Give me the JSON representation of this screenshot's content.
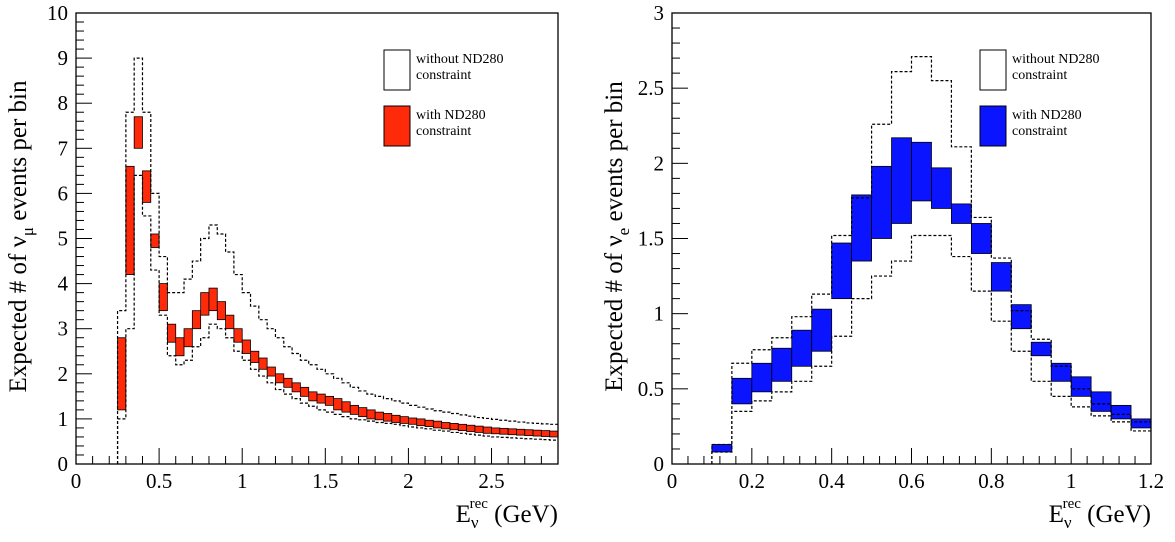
{
  "chart_data": [
    {
      "type": "histogram-band",
      "ylabel": "Expected # of νμ events per bin",
      "ylabel_main": "Expected # of ",
      "ylabel_nu": "ν",
      "ylabel_sub": "μ",
      "ylabel_rest": " events per bin",
      "xlabel": "Eνrec (GeV)",
      "xlabel_E": "E",
      "xlabel_sub": "ν",
      "xlabel_sup": "rec",
      "xlabel_unit": " (GeV)",
      "xlim": [
        0,
        2.9
      ],
      "ylim": [
        0,
        10
      ],
      "xticks": [
        0,
        0.5,
        1,
        1.5,
        2,
        2.5
      ],
      "xtick_labels": [
        "0",
        "0.5",
        "1",
        "1.5",
        "2",
        "2.5"
      ],
      "yticks": [
        0,
        1,
        2,
        3,
        4,
        5,
        6,
        7,
        8,
        9,
        10
      ],
      "ytick_labels": [
        "0",
        "1",
        "2",
        "3",
        "4",
        "5",
        "6",
        "7",
        "8",
        "9",
        "10"
      ],
      "bin_edges": [
        0.25,
        0.3,
        0.35,
        0.4,
        0.45,
        0.5,
        0.55,
        0.6,
        0.65,
        0.7,
        0.75,
        0.8,
        0.85,
        0.9,
        0.95,
        1.0,
        1.05,
        1.1,
        1.15,
        1.2,
        1.25,
        1.3,
        1.35,
        1.4,
        1.45,
        1.5,
        1.55,
        1.6,
        1.65,
        1.7,
        1.75,
        1.8,
        1.85,
        1.9,
        1.95,
        2.0,
        2.05,
        2.1,
        2.15,
        2.2,
        2.25,
        2.3,
        2.35,
        2.4,
        2.45,
        2.5,
        2.55,
        2.6,
        2.65,
        2.7,
        2.75,
        2.8,
        2.85,
        2.9
      ],
      "band_fill": "#ff2a0a",
      "series": [
        {
          "name": "without ND280 constraint",
          "style": "dashed-outline",
          "low": [
            1.0,
            3.0,
            6.4,
            5.5,
            4.3,
            3.3,
            2.4,
            2.2,
            2.3,
            2.6,
            2.8,
            3.1,
            3.0,
            2.8,
            2.5,
            2.3,
            2.1,
            1.95,
            1.8,
            1.65,
            1.55,
            1.45,
            1.35,
            1.28,
            1.2,
            1.15,
            1.1,
            1.05,
            1.0,
            0.98,
            0.95,
            0.92,
            0.9,
            0.88,
            0.85,
            0.82,
            0.8,
            0.78,
            0.75,
            0.73,
            0.7,
            0.68,
            0.66,
            0.64,
            0.62,
            0.6,
            0.59,
            0.58,
            0.57,
            0.56,
            0.55,
            0.54,
            0.53
          ],
          "high": [
            3.4,
            7.8,
            9.0,
            7.8,
            6.0,
            4.6,
            3.8,
            3.8,
            4.1,
            4.5,
            5.0,
            5.3,
            5.1,
            4.7,
            4.2,
            3.8,
            3.5,
            3.2,
            3.0,
            2.8,
            2.6,
            2.45,
            2.3,
            2.2,
            2.1,
            2.0,
            1.9,
            1.8,
            1.7,
            1.62,
            1.55,
            1.5,
            1.45,
            1.4,
            1.35,
            1.3,
            1.26,
            1.22,
            1.18,
            1.15,
            1.12,
            1.09,
            1.06,
            1.03,
            1.01,
            0.99,
            0.97,
            0.95,
            0.93,
            0.91,
            0.9,
            0.89,
            0.88
          ]
        },
        {
          "name": "with ND280 constraint",
          "style": "filled-band",
          "low": [
            1.2,
            4.2,
            7.0,
            5.8,
            4.8,
            3.4,
            2.7,
            2.4,
            2.6,
            3.0,
            3.3,
            3.4,
            3.2,
            3.0,
            2.7,
            2.45,
            2.25,
            2.1,
            1.95,
            1.8,
            1.7,
            1.6,
            1.5,
            1.4,
            1.35,
            1.3,
            1.2,
            1.15,
            1.1,
            1.05,
            1.0,
            0.98,
            0.95,
            0.92,
            0.9,
            0.88,
            0.85,
            0.83,
            0.8,
            0.78,
            0.76,
            0.74,
            0.72,
            0.7,
            0.68,
            0.67,
            0.66,
            0.65,
            0.64,
            0.63,
            0.62,
            0.61,
            0.6
          ],
          "high": [
            2.8,
            6.6,
            7.7,
            6.5,
            5.1,
            4.0,
            3.1,
            2.8,
            3.0,
            3.4,
            3.8,
            3.9,
            3.6,
            3.3,
            3.0,
            2.75,
            2.5,
            2.35,
            2.15,
            2.0,
            1.9,
            1.8,
            1.7,
            1.6,
            1.55,
            1.5,
            1.45,
            1.38,
            1.3,
            1.25,
            1.2,
            1.15,
            1.12,
            1.08,
            1.05,
            1.02,
            1.0,
            0.97,
            0.95,
            0.92,
            0.9,
            0.88,
            0.86,
            0.84,
            0.82,
            0.8,
            0.79,
            0.78,
            0.77,
            0.76,
            0.75,
            0.74,
            0.73
          ]
        }
      ],
      "legend": [
        "without ND280\nconstraint",
        "with ND280\nconstraint"
      ],
      "legend_placement": "top-right"
    },
    {
      "type": "histogram-band",
      "ylabel": "Expected # of νe events per bin",
      "ylabel_main": "Expected # of ",
      "ylabel_nu": "ν",
      "ylabel_sub": "e",
      "ylabel_rest": " events per bin",
      "xlabel": "Eνrec (GeV)",
      "xlabel_E": "E",
      "xlabel_sub": "ν",
      "xlabel_sup": "rec",
      "xlabel_unit": " (GeV)",
      "xlim": [
        0,
        1.2
      ],
      "ylim": [
        0,
        3
      ],
      "xticks": [
        0,
        0.2,
        0.4,
        0.6,
        0.8,
        1.0,
        1.2
      ],
      "xtick_labels": [
        "0",
        "0.2",
        "0.4",
        "0.6",
        "0.8",
        "1",
        "1.2"
      ],
      "yticks": [
        0,
        0.5,
        1,
        1.5,
        2,
        2.5,
        3
      ],
      "ytick_labels": [
        "0",
        "0.5",
        "1",
        "1.5",
        "2",
        "2.5",
        "3"
      ],
      "bin_edges": [
        0.1,
        0.15,
        0.2,
        0.25,
        0.3,
        0.35,
        0.4,
        0.45,
        0.5,
        0.55,
        0.6,
        0.65,
        0.7,
        0.75,
        0.8,
        0.85,
        0.9,
        0.95,
        1.0,
        1.05,
        1.1,
        1.15,
        1.2
      ],
      "band_fill": "#0a14ff",
      "series": [
        {
          "name": "without ND280 constraint",
          "style": "dashed-outline",
          "low": [
            0.08,
            0.35,
            0.42,
            0.48,
            0.55,
            0.65,
            0.85,
            1.1,
            1.25,
            1.35,
            1.52,
            1.52,
            1.38,
            1.15,
            0.95,
            0.75,
            0.55,
            0.45,
            0.38,
            0.32,
            0.28,
            0.22
          ],
          "high": [
            0.13,
            0.67,
            0.76,
            0.84,
            0.98,
            1.13,
            1.52,
            1.77,
            2.26,
            2.61,
            2.71,
            2.55,
            2.11,
            1.64,
            1.37,
            1.02,
            0.83,
            0.65,
            0.5,
            0.4,
            0.33,
            0.28
          ]
        },
        {
          "name": "with ND280 constraint",
          "style": "filled-band",
          "low": [
            0.08,
            0.4,
            0.48,
            0.55,
            0.65,
            0.75,
            1.1,
            1.35,
            1.5,
            1.6,
            1.75,
            1.7,
            1.6,
            1.4,
            1.15,
            0.9,
            0.72,
            0.55,
            0.45,
            0.35,
            0.3,
            0.24
          ],
          "high": [
            0.13,
            0.57,
            0.67,
            0.77,
            0.89,
            1.03,
            1.47,
            1.79,
            1.98,
            2.17,
            2.14,
            1.97,
            1.73,
            1.6,
            1.34,
            1.06,
            0.81,
            0.67,
            0.58,
            0.48,
            0.39,
            0.3
          ]
        }
      ],
      "legend": [
        "without ND280\nconstraint",
        "with ND280\nconstraint"
      ],
      "legend_placement": "top-right"
    }
  ]
}
